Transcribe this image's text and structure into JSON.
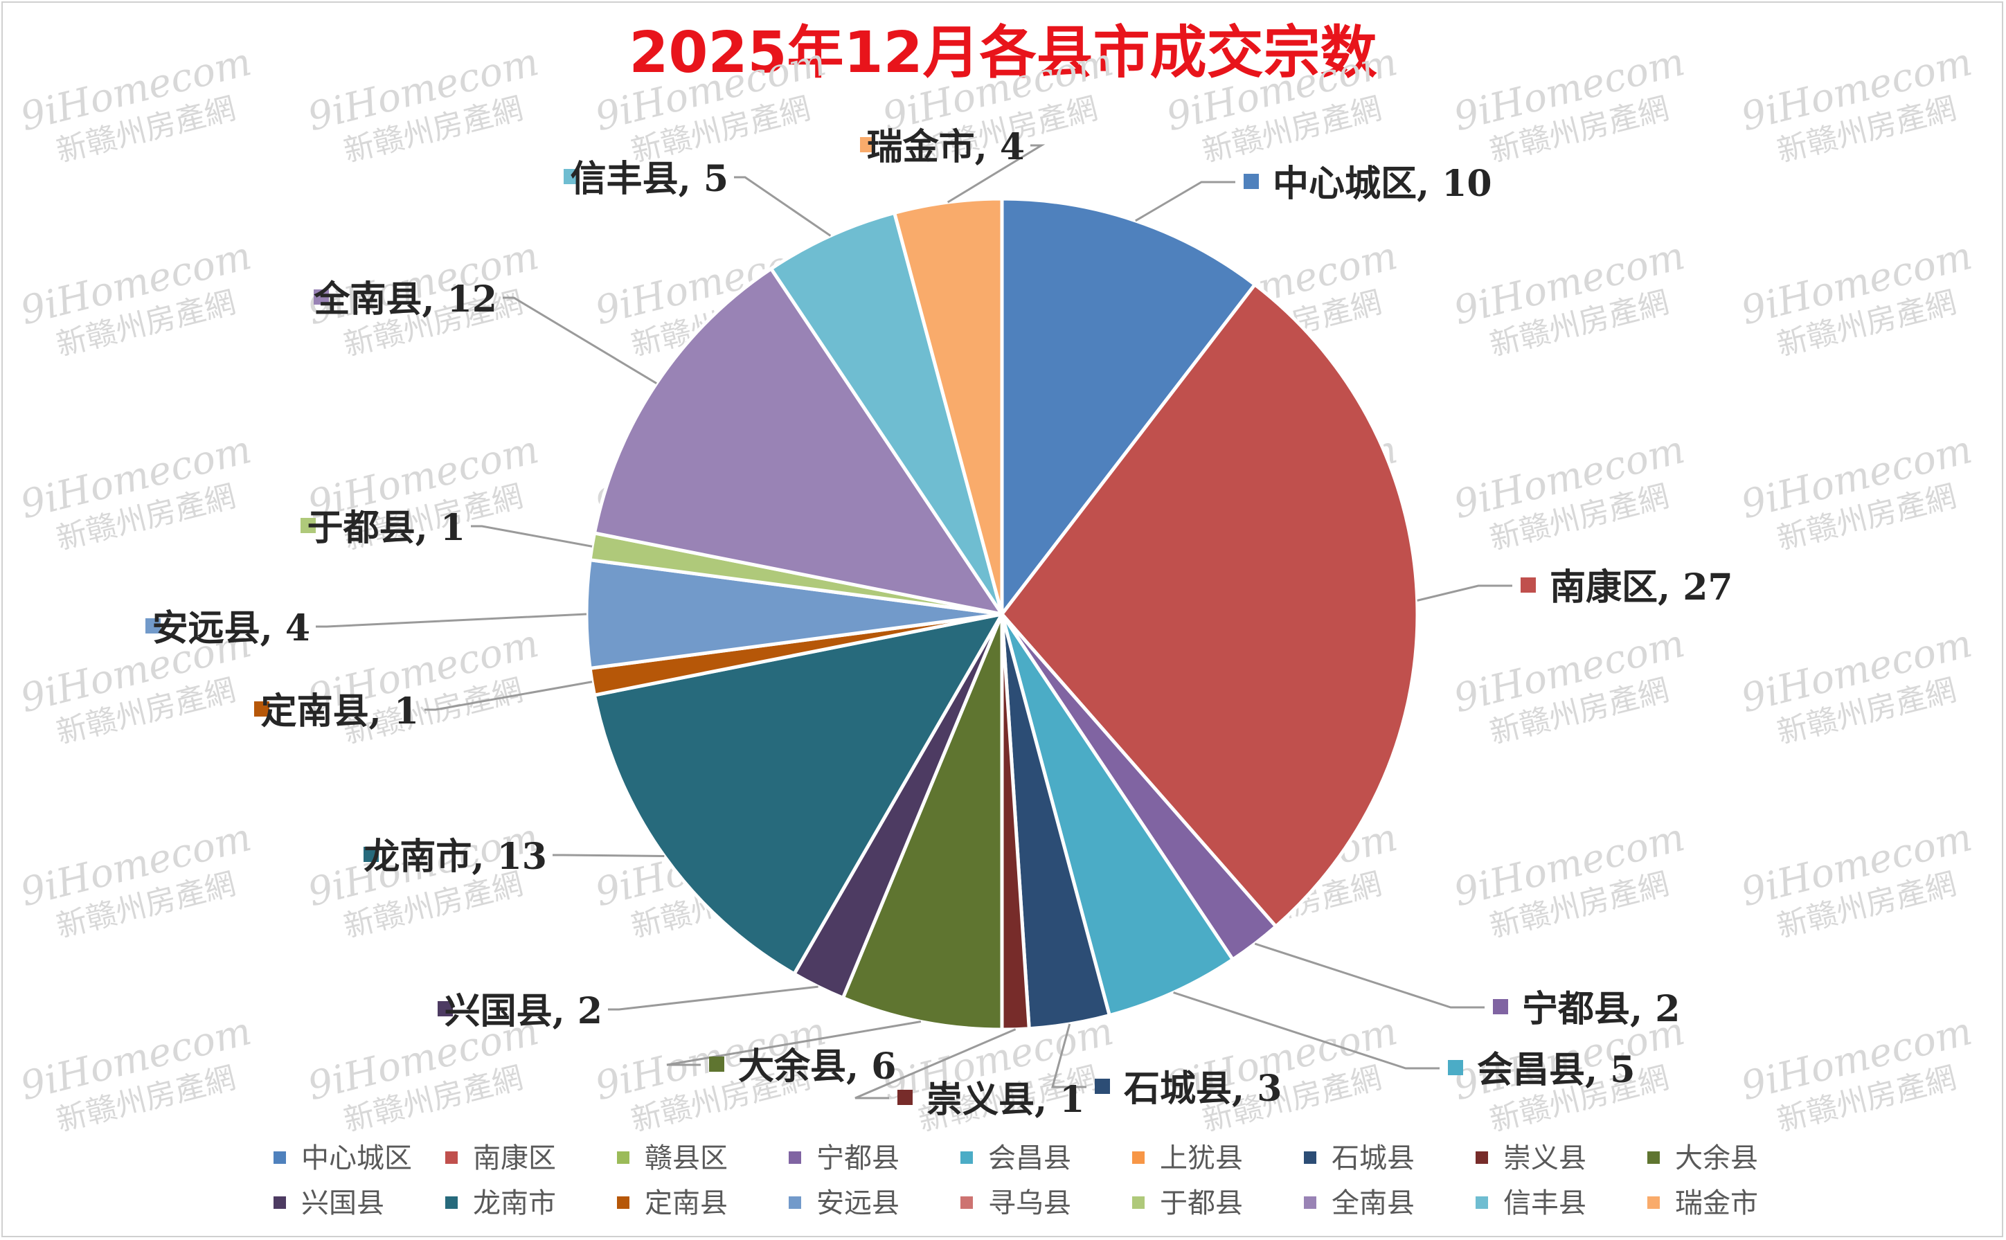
{
  "chart_data": {
    "type": "pie",
    "title": "2025年12月各县市成交宗数",
    "slices": [
      {
        "name": "中心城区",
        "value": 10,
        "color": "#4f81bd",
        "label": "中心城区, 10"
      },
      {
        "name": "南康区",
        "value": 27,
        "color": "#c0504d",
        "label": "南康区, 27"
      },
      {
        "name": "赣县区",
        "value": 0,
        "color": "#9bbb59",
        "label": ""
      },
      {
        "name": "宁都县",
        "value": 2,
        "color": "#8064a2",
        "label": "宁都县, 2"
      },
      {
        "name": "会昌县",
        "value": 5,
        "color": "#4bacc6",
        "label": "会昌县, 5"
      },
      {
        "name": "上犹县",
        "value": 0,
        "color": "#f79646",
        "label": ""
      },
      {
        "name": "石城县",
        "value": 3,
        "color": "#2c4d75",
        "label": "石城县, 3"
      },
      {
        "name": "崇义县",
        "value": 1,
        "color": "#772c2a",
        "label": "崇义县, 1"
      },
      {
        "name": "大余县",
        "value": 6,
        "color": "#5f7530",
        "label": "大余县, 6"
      },
      {
        "name": "兴国县",
        "value": 2,
        "color": "#4d3b62",
        "label": "兴国县, 2"
      },
      {
        "name": "龙南市",
        "value": 13,
        "color": "#276a7c",
        "label": "龙南市, 13"
      },
      {
        "name": "定南县",
        "value": 1,
        "color": "#b65708",
        "label": "定南县, 1"
      },
      {
        "name": "安远县",
        "value": 4,
        "color": "#729aca",
        "label": "安远县, 4"
      },
      {
        "name": "寻乌县",
        "value": 0,
        "color": "#cd7371",
        "label": ""
      },
      {
        "name": "于都县",
        "value": 1,
        "color": "#afc97a",
        "label": "于都县, 1"
      },
      {
        "name": "全南县",
        "value": 12,
        "color": "#9983b5",
        "label": "全南县, 12"
      },
      {
        "name": "信丰县",
        "value": 5,
        "color": "#6fbdd1",
        "label": "信丰县, 5"
      },
      {
        "name": "瑞金市",
        "value": 4,
        "color": "#f9ab6b",
        "label": "瑞金市, 4"
      }
    ],
    "legend_position": "bottom",
    "data_labels": "category name and value, outside with leader lines"
  },
  "watermark": {
    "line1": "9iHomecom",
    "line2": "新赣州房產網"
  }
}
